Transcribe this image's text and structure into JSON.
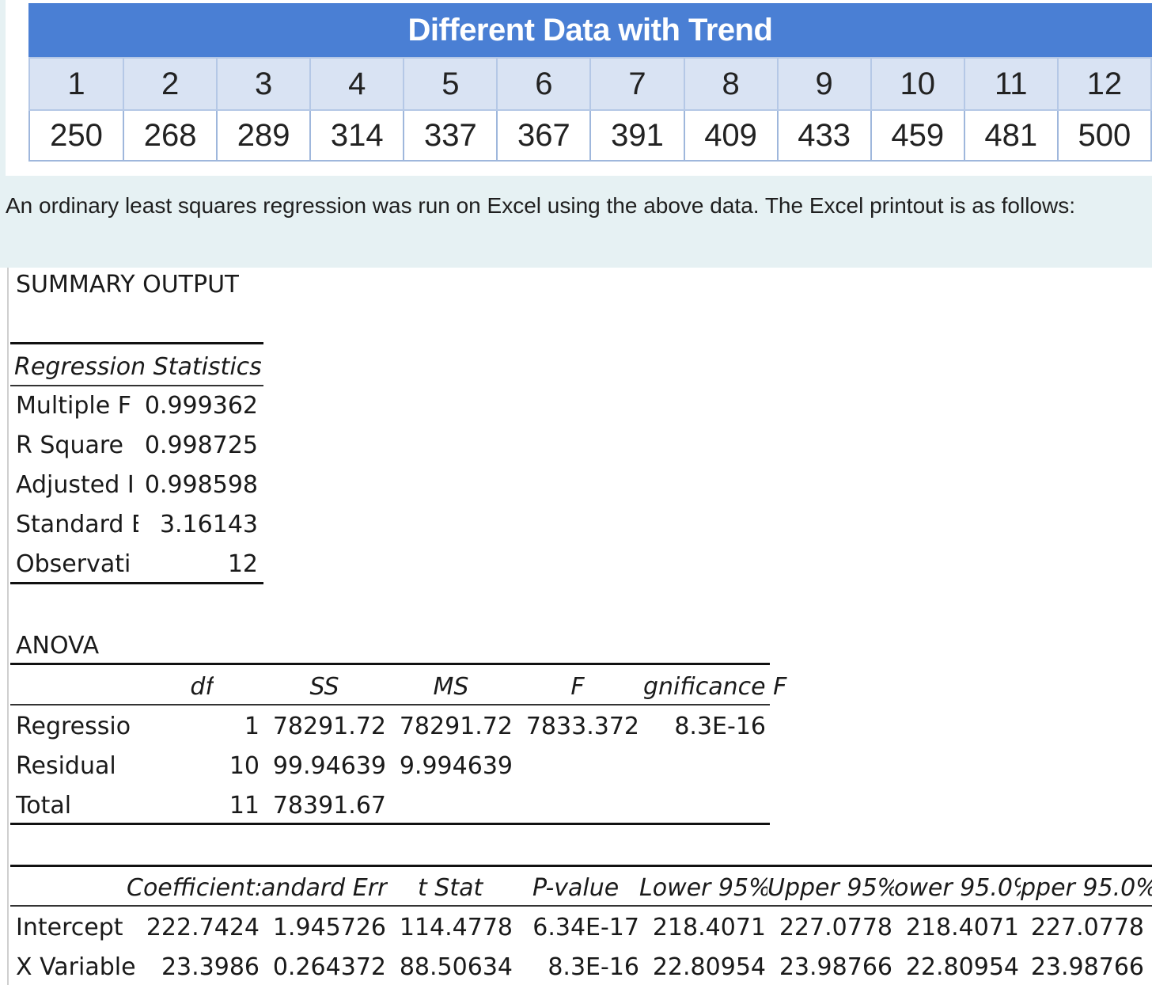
{
  "data_table": {
    "title": "Different Data with Trend",
    "periods": [
      "1",
      "2",
      "3",
      "4",
      "5",
      "6",
      "7",
      "8",
      "9",
      "10",
      "11",
      "12"
    ],
    "values": [
      "250",
      "268",
      "289",
      "314",
      "337",
      "367",
      "391",
      "409",
      "433",
      "459",
      "481",
      "500"
    ]
  },
  "intro": "An ordinary least squares regression was run on Excel using the above data. The Excel printout is as follows:",
  "summary": {
    "title": "SUMMARY OUTPUT",
    "regression_statistics": {
      "header": "Regression Statistics",
      "rows": [
        {
          "label": "Multiple F",
          "value": "0.999362"
        },
        {
          "label": "R Square",
          "value": "0.998725"
        },
        {
          "label": "Adjusted I",
          "value": "0.998598"
        },
        {
          "label": "Standard E",
          "value": "3.16143"
        },
        {
          "label": "Observati",
          "value": "12"
        }
      ]
    },
    "anova": {
      "title": "ANOVA",
      "headers": [
        "df",
        "SS",
        "MS",
        "F",
        "gnificance F"
      ],
      "rows": [
        {
          "label": "Regressio",
          "df": "1",
          "ss": "78291.72",
          "ms": "78291.72",
          "f": "7833.372",
          "sig": "8.3E-16"
        },
        {
          "label": "Residual",
          "df": "10",
          "ss": "99.94639",
          "ms": "9.994639",
          "f": "",
          "sig": ""
        },
        {
          "label": "Total",
          "df": "11",
          "ss": "78391.67",
          "ms": "",
          "f": "",
          "sig": ""
        }
      ]
    },
    "coefficients": {
      "headers": [
        "Coefficient:",
        "andard Err",
        "t Stat",
        "P-value",
        "Lower 95%",
        "Upper 95%",
        "ower 95.0%",
        "pper 95.0%"
      ],
      "rows": [
        {
          "label": "Intercept",
          "vals": [
            "222.7424",
            "1.945726",
            "114.4778",
            "6.34E-17",
            "218.4071",
            "227.0778",
            "218.4071",
            "227.0778"
          ]
        },
        {
          "label": "X Variable",
          "vals": [
            "23.3986",
            "0.264372",
            "88.50634",
            "8.3E-16",
            "22.80954",
            "23.98766",
            "22.80954",
            "23.98766"
          ]
        }
      ]
    }
  }
}
